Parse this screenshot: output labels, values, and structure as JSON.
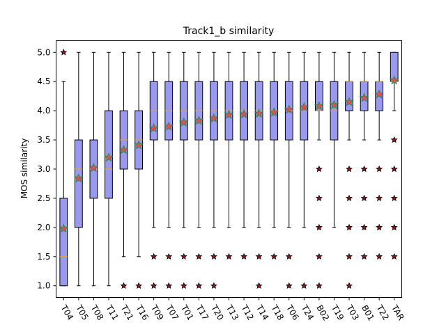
{
  "chart_data": {
    "type": "box",
    "title": "Track1_b similarity",
    "ylabel": "MOS similarity",
    "xlabel": "",
    "ylim": [
      0.8,
      5.2
    ],
    "yticks": [
      1.0,
      1.5,
      2.0,
      2.5,
      3.0,
      3.5,
      4.0,
      4.5,
      5.0
    ],
    "ytick_labels": [
      "1.0",
      "1.5",
      "2.0",
      "2.5",
      "3.0",
      "3.5",
      "4.0",
      "4.5",
      "5.0"
    ],
    "grid": false,
    "legend": "none",
    "colors": {
      "box_fill": "#9999ee",
      "box_edge": "#000000",
      "median": "#ffa500",
      "mean_marker": "#e05050",
      "mean_marker_edge": "#2e8b57",
      "flier_fill": "#8b1a1a",
      "flier_edge": "#000000"
    },
    "categories": [
      {
        "label": "T04",
        "whislo": 1.0,
        "q1": 1.0,
        "med": 1.5,
        "q3": 2.5,
        "whishi": 4.5,
        "mean": 1.98,
        "fliers": [
          5.0
        ]
      },
      {
        "label": "T05",
        "whislo": 1.0,
        "q1": 2.0,
        "med": 3.0,
        "q3": 3.5,
        "whishi": 5.0,
        "mean": 2.84,
        "fliers": []
      },
      {
        "label": "T08",
        "whislo": 1.0,
        "q1": 2.5,
        "med": 3.0,
        "q3": 3.5,
        "whishi": 5.0,
        "mean": 3.02,
        "fliers": []
      },
      {
        "label": "T11",
        "whislo": 1.0,
        "q1": 2.5,
        "med": 3.0,
        "q3": 4.0,
        "whishi": 5.0,
        "mean": 3.2,
        "fliers": []
      },
      {
        "label": "T21",
        "whislo": 1.5,
        "q1": 3.0,
        "med": 3.5,
        "q3": 4.0,
        "whishi": 5.0,
        "mean": 3.33,
        "fliers": [
          1.0
        ]
      },
      {
        "label": "T16",
        "whislo": 1.5,
        "q1": 3.0,
        "med": 3.5,
        "q3": 4.0,
        "whishi": 5.0,
        "mean": 3.41,
        "fliers": [
          1.0
        ]
      },
      {
        "label": "T09",
        "whislo": 2.0,
        "q1": 3.5,
        "med": 4.0,
        "q3": 4.5,
        "whishi": 5.0,
        "mean": 3.7,
        "fliers": [
          1.5,
          1.0
        ]
      },
      {
        "label": "T07",
        "whislo": 2.0,
        "q1": 3.5,
        "med": 4.0,
        "q3": 4.5,
        "whishi": 5.0,
        "mean": 3.73,
        "fliers": [
          1.5,
          1.0
        ]
      },
      {
        "label": "T01",
        "whislo": 2.0,
        "q1": 3.5,
        "med": 4.0,
        "q3": 4.5,
        "whishi": 5.0,
        "mean": 3.8,
        "fliers": [
          1.5,
          1.0
        ]
      },
      {
        "label": "T17",
        "whislo": 2.0,
        "q1": 3.5,
        "med": 4.0,
        "q3": 4.5,
        "whishi": 5.0,
        "mean": 3.83,
        "fliers": [
          1.5,
          1.0
        ]
      },
      {
        "label": "T20",
        "whislo": 2.0,
        "q1": 3.5,
        "med": 4.0,
        "q3": 4.5,
        "whishi": 5.0,
        "mean": 3.87,
        "fliers": [
          1.5,
          1.0
        ]
      },
      {
        "label": "T13",
        "whislo": 2.0,
        "q1": 3.5,
        "med": 4.0,
        "q3": 4.5,
        "whishi": 5.0,
        "mean": 3.93,
        "fliers": [
          1.5
        ]
      },
      {
        "label": "T12",
        "whislo": 2.0,
        "q1": 3.5,
        "med": 4.0,
        "q3": 4.5,
        "whishi": 5.0,
        "mean": 3.94,
        "fliers": [
          1.5
        ]
      },
      {
        "label": "T14",
        "whislo": 2.0,
        "q1": 3.5,
        "med": 4.0,
        "q3": 4.5,
        "whishi": 5.0,
        "mean": 3.95,
        "fliers": [
          1.5,
          1.0
        ]
      },
      {
        "label": "T18",
        "whislo": 2.0,
        "q1": 3.5,
        "med": 4.0,
        "q3": 4.5,
        "whishi": 5.0,
        "mean": 3.97,
        "fliers": [
          1.5
        ]
      },
      {
        "label": "T06",
        "whislo": 2.0,
        "q1": 3.5,
        "med": 4.0,
        "q3": 4.5,
        "whishi": 5.0,
        "mean": 4.02,
        "fliers": [
          1.5,
          1.0
        ]
      },
      {
        "label": "T24",
        "whislo": 2.0,
        "q1": 3.5,
        "med": 4.0,
        "q3": 4.5,
        "whishi": 5.0,
        "mean": 4.06,
        "fliers": [
          1.0
        ]
      },
      {
        "label": "B02",
        "whislo": 3.5,
        "q1": 4.0,
        "med": 4.0,
        "q3": 4.5,
        "whishi": 5.0,
        "mean": 4.08,
        "fliers": [
          3.0,
          2.5,
          2.0,
          1.5,
          1.0
        ]
      },
      {
        "label": "T19",
        "whislo": 2.0,
        "q1": 3.5,
        "med": 4.0,
        "q3": 4.5,
        "whishi": 5.0,
        "mean": 4.1,
        "fliers": []
      },
      {
        "label": "T03",
        "whislo": 3.5,
        "q1": 4.0,
        "med": 4.5,
        "q3": 4.5,
        "whishi": 5.0,
        "mean": 4.15,
        "fliers": [
          3.0,
          2.5,
          2.0,
          1.5,
          1.0
        ]
      },
      {
        "label": "B01",
        "whislo": 3.5,
        "q1": 4.0,
        "med": 4.5,
        "q3": 4.5,
        "whishi": 5.0,
        "mean": 4.22,
        "fliers": [
          3.0,
          2.5,
          2.0,
          1.5
        ]
      },
      {
        "label": "T22",
        "whislo": 3.5,
        "q1": 4.0,
        "med": 4.5,
        "q3": 4.5,
        "whishi": 5.0,
        "mean": 4.28,
        "fliers": [
          3.0,
          2.5,
          2.0,
          1.5
        ]
      },
      {
        "label": "TAR",
        "whislo": 4.0,
        "q1": 4.5,
        "med": 4.5,
        "q3": 5.0,
        "whishi": 5.0,
        "mean": 4.52,
        "fliers": [
          3.5,
          3.0,
          2.5,
          2.0,
          1.5
        ]
      }
    ]
  }
}
